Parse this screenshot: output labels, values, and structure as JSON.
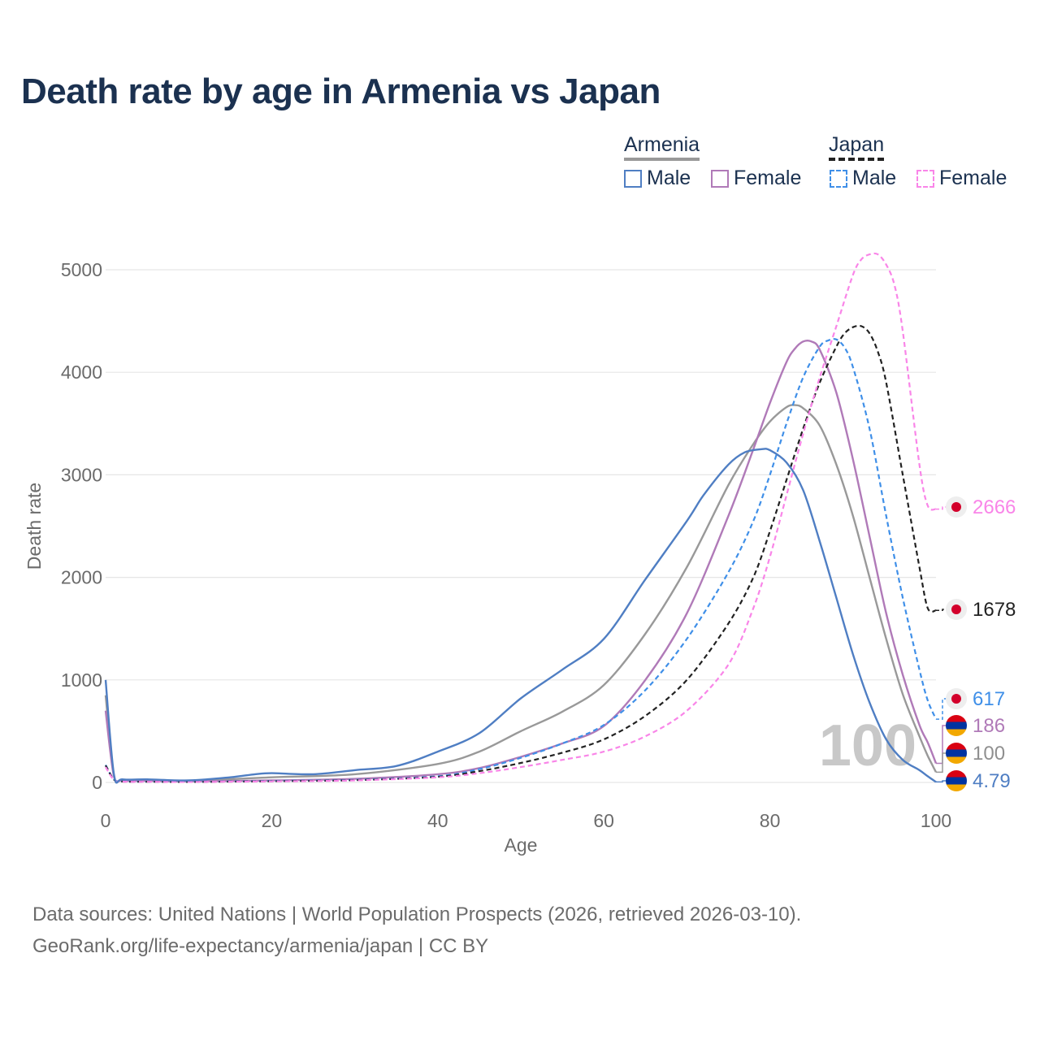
{
  "title": "Death rate by age in Armenia vs Japan",
  "legend": {
    "groups": [
      {
        "name": "Armenia",
        "underline": "solid",
        "items": [
          "Male",
          "Female"
        ]
      },
      {
        "name": "Japan",
        "underline": "dashed",
        "items": [
          "Male",
          "Female"
        ]
      }
    ]
  },
  "year_watermark": "100",
  "footer": {
    "line1": "Data sources: United Nations | World Population Prospects (2026, retrieved 2026-03-10).",
    "line2": "GeoRank.org/life-expectancy/armenia/japan | CC BY"
  },
  "colors": {
    "armenia_male": "#4f7ec3",
    "armenia_female": "#b07ab8",
    "armenia_both": "#999999",
    "japan_male": "#3f8fe8",
    "japan_female": "#f985e8",
    "japan_both": "#222222",
    "grid": "#e6e6e6",
    "axis_text": "#6b6b6b"
  },
  "chart_data": {
    "type": "line",
    "xlabel": "Age",
    "ylabel": "Death rate",
    "xlim": [
      0,
      100
    ],
    "ylim": [
      0,
      5000
    ],
    "x_ticks": [
      0,
      20,
      40,
      60,
      80,
      100
    ],
    "y_ticks": [
      0,
      1000,
      2000,
      3000,
      4000,
      5000
    ],
    "grid": true,
    "legend_position": "top-right",
    "series": [
      {
        "name": "Armenia Male",
        "key": "armenia_male",
        "dash": false,
        "end_label": "4.79",
        "end_value": 4.79,
        "flag": "armenia",
        "x": [
          0,
          1,
          2,
          5,
          10,
          15,
          18,
          20,
          25,
          30,
          35,
          40,
          45,
          50,
          55,
          60,
          65,
          70,
          72,
          75,
          77,
          79,
          80,
          82,
          84,
          86,
          88,
          90,
          92,
          94,
          96,
          98,
          99,
          100
        ],
        "y": [
          1000,
          80,
          30,
          30,
          20,
          50,
          80,
          90,
          80,
          120,
          160,
          300,
          480,
          820,
          1100,
          1400,
          1980,
          2550,
          2800,
          3100,
          3220,
          3250,
          3240,
          3120,
          2850,
          2350,
          1800,
          1250,
          780,
          420,
          220,
          120,
          60,
          4.79
        ]
      },
      {
        "name": "Armenia Female",
        "key": "armenia_female",
        "dash": false,
        "end_label": "186",
        "end_value": 186,
        "flag": "armenia",
        "x": [
          0,
          1,
          2,
          5,
          10,
          20,
          30,
          40,
          45,
          50,
          55,
          60,
          65,
          70,
          75,
          78,
          80,
          82,
          83,
          84,
          85,
          86,
          88,
          90,
          92,
          94,
          96,
          98,
          99,
          100
        ],
        "y": [
          700,
          60,
          20,
          15,
          10,
          20,
          35,
          80,
          140,
          250,
          380,
          550,
          1000,
          1650,
          2600,
          3250,
          3700,
          4100,
          4230,
          4300,
          4300,
          4220,
          3800,
          3150,
          2400,
          1650,
          1050,
          560,
          390,
          186
        ]
      },
      {
        "name": "Armenia Both",
        "key": "armenia_both",
        "dash": false,
        "end_label": "100",
        "end_value": 100,
        "flag": "armenia",
        "x": [
          0,
          1,
          2,
          5,
          10,
          20,
          30,
          40,
          45,
          50,
          55,
          60,
          65,
          70,
          75,
          78,
          80,
          82,
          83,
          84,
          86,
          88,
          90,
          92,
          94,
          96,
          98,
          99,
          100
        ],
        "y": [
          850,
          70,
          25,
          20,
          15,
          50,
          80,
          180,
          300,
          500,
          690,
          950,
          1450,
          2100,
          2900,
          3300,
          3520,
          3660,
          3680,
          3650,
          3480,
          3100,
          2600,
          2000,
          1400,
          860,
          450,
          260,
          100
        ]
      },
      {
        "name": "Japan Male",
        "key": "japan_male",
        "dash": true,
        "end_label": "617",
        "end_value": 617,
        "flag": "japan",
        "x": [
          0,
          1,
          2,
          5,
          10,
          20,
          30,
          40,
          45,
          50,
          55,
          60,
          65,
          70,
          75,
          78,
          80,
          82,
          84,
          86,
          87,
          88,
          89,
          90,
          92,
          94,
          96,
          98,
          99,
          100
        ],
        "y": [
          170,
          30,
          10,
          8,
          6,
          15,
          25,
          60,
          130,
          240,
          380,
          560,
          900,
          1400,
          2050,
          2550,
          3000,
          3500,
          3950,
          4250,
          4310,
          4320,
          4240,
          4050,
          3450,
          2600,
          1800,
          1100,
          800,
          617
        ]
      },
      {
        "name": "Japan Female",
        "key": "japan_female",
        "dash": true,
        "end_label": "2666",
        "end_value": 2666,
        "flag": "japan",
        "x": [
          0,
          1,
          2,
          5,
          10,
          20,
          30,
          40,
          45,
          50,
          55,
          60,
          65,
          70,
          75,
          78,
          80,
          82,
          84,
          86,
          88,
          90,
          91,
          92,
          93,
          94,
          95,
          96,
          98,
          99,
          100
        ],
        "y": [
          150,
          25,
          8,
          6,
          5,
          10,
          20,
          50,
          90,
          150,
          220,
          300,
          450,
          700,
          1150,
          1700,
          2200,
          2800,
          3400,
          3950,
          4450,
          4950,
          5100,
          5150,
          5150,
          5050,
          4850,
          4400,
          3100,
          2700,
          2666
        ]
      },
      {
        "name": "Japan Both",
        "key": "japan_both",
        "dash": true,
        "end_label": "1678",
        "end_value": 1678,
        "flag": "japan",
        "x": [
          0,
          1,
          2,
          5,
          10,
          20,
          30,
          40,
          45,
          50,
          55,
          60,
          65,
          70,
          75,
          78,
          80,
          82,
          84,
          86,
          88,
          89,
          90,
          91,
          92,
          93,
          94,
          96,
          98,
          99,
          100
        ],
        "y": [
          165,
          28,
          9,
          7,
          5,
          12,
          22,
          55,
          110,
          190,
          290,
          420,
          650,
          1000,
          1550,
          2000,
          2450,
          2950,
          3450,
          3900,
          4250,
          4380,
          4440,
          4450,
          4380,
          4200,
          3900,
          3000,
          2100,
          1700,
          1678
        ]
      }
    ]
  }
}
